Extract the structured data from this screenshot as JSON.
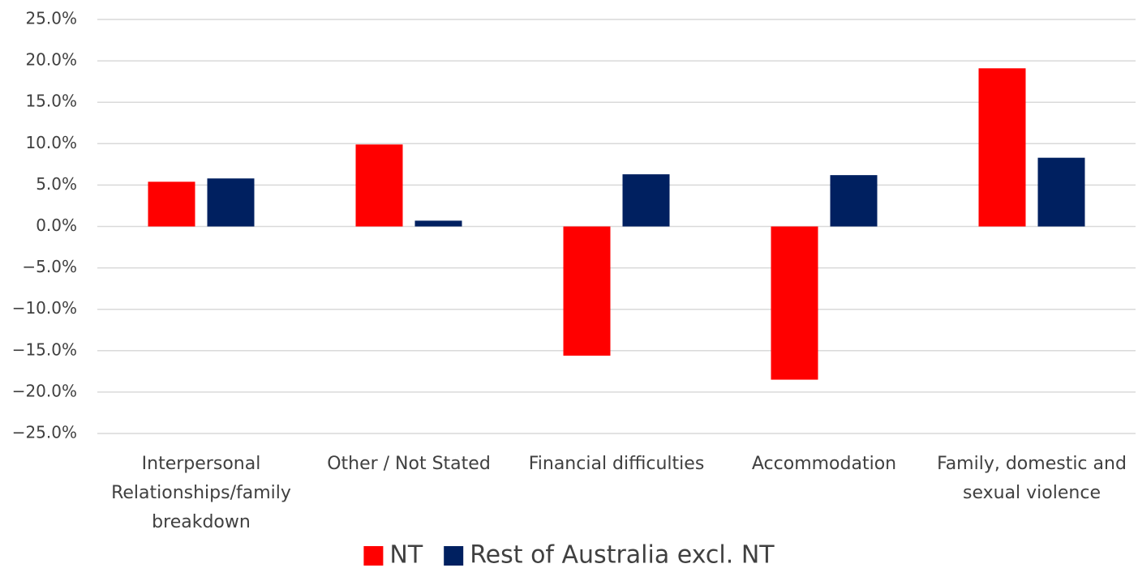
{
  "chart_data": {
    "type": "bar",
    "categories": [
      "Interpersonal Relationships/family breakdown",
      "Other / Not Stated",
      "Financial difficulties",
      "Accommodation",
      "Family, domestic and sexual violence"
    ],
    "series": [
      {
        "name": "NT",
        "color": "#ff0000",
        "values": [
          5.4,
          9.9,
          -15.6,
          -18.5,
          19.1
        ]
      },
      {
        "name": "Rest of Australia excl. NT",
        "color": "#002060",
        "values": [
          5.8,
          0.7,
          6.3,
          6.2,
          8.3
        ]
      }
    ],
    "ylim": [
      -25,
      25
    ],
    "yticks": [
      {
        "value": -25,
        "label": "−25.0%"
      },
      {
        "value": -20,
        "label": "−20.0%"
      },
      {
        "value": -15,
        "label": "−15.0%"
      },
      {
        "value": -10,
        "label": "−10.0%"
      },
      {
        "value": -5,
        "label": "−5.0%"
      },
      {
        "value": 0,
        "label": "0.0%"
      },
      {
        "value": 5,
        "label": "5.0%"
      },
      {
        "value": 10,
        "label": "10.0%"
      },
      {
        "value": 15,
        "label": "15.0%"
      },
      {
        "value": 20,
        "label": "20.0%"
      },
      {
        "value": 25,
        "label": "25.0%"
      }
    ],
    "grid": true,
    "legend": "bottom"
  }
}
